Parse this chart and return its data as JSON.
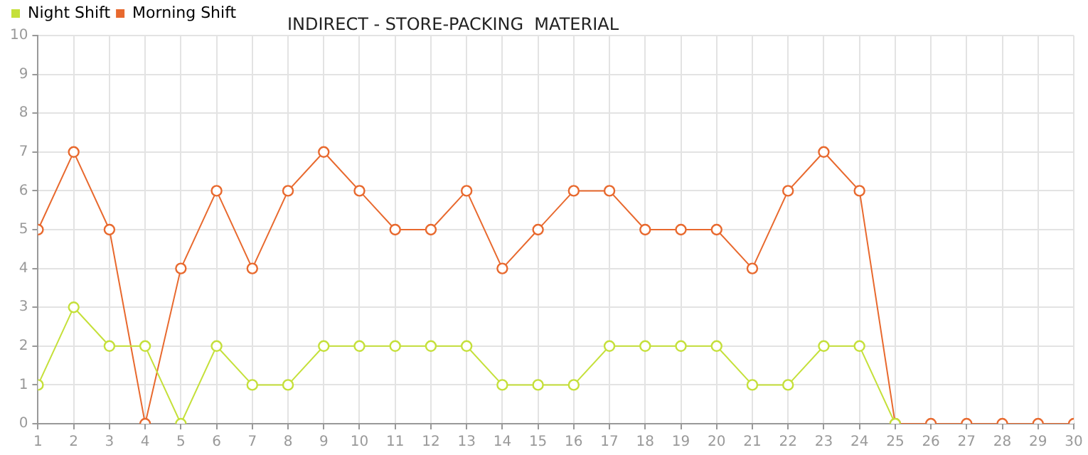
{
  "chart_data": {
    "type": "line",
    "title": "INDIRECT - STORE-PACKING  MATERIAL",
    "x": [
      1,
      2,
      3,
      4,
      5,
      6,
      7,
      8,
      9,
      10,
      11,
      12,
      13,
      14,
      15,
      16,
      17,
      18,
      19,
      20,
      21,
      22,
      23,
      24,
      25,
      26,
      27,
      28,
      29,
      30
    ],
    "series": [
      {
        "name": "Night Shift",
        "color": "#c5e03a",
        "values": [
          1,
          3,
          2,
          2,
          0,
          2,
          1,
          1,
          2,
          2,
          2,
          2,
          2,
          1,
          1,
          1,
          2,
          2,
          2,
          2,
          1,
          1,
          2,
          2,
          0,
          null,
          null,
          null,
          null,
          null
        ]
      },
      {
        "name": "Morning Shift",
        "color": "#e8692e",
        "values": [
          5,
          7,
          5,
          0,
          4,
          6,
          4,
          6,
          7,
          6,
          5,
          5,
          6,
          4,
          5,
          6,
          6,
          5,
          5,
          5,
          4,
          6,
          7,
          6,
          0,
          0,
          0,
          0,
          0,
          0
        ]
      }
    ],
    "xlim": [
      1,
      30
    ],
    "xticks": [
      1,
      2,
      3,
      4,
      5,
      6,
      7,
      8,
      9,
      10,
      11,
      12,
      13,
      14,
      15,
      16,
      17,
      18,
      19,
      20,
      21,
      22,
      23,
      24,
      25,
      26,
      27,
      28,
      29,
      30
    ],
    "ylim": [
      0,
      10
    ],
    "yticks": [
      0,
      1,
      2,
      3,
      4,
      5,
      6,
      7,
      8,
      9,
      10
    ],
    "grid": true,
    "legend": "top left",
    "marker": "circle",
    "line_style": "solid"
  }
}
